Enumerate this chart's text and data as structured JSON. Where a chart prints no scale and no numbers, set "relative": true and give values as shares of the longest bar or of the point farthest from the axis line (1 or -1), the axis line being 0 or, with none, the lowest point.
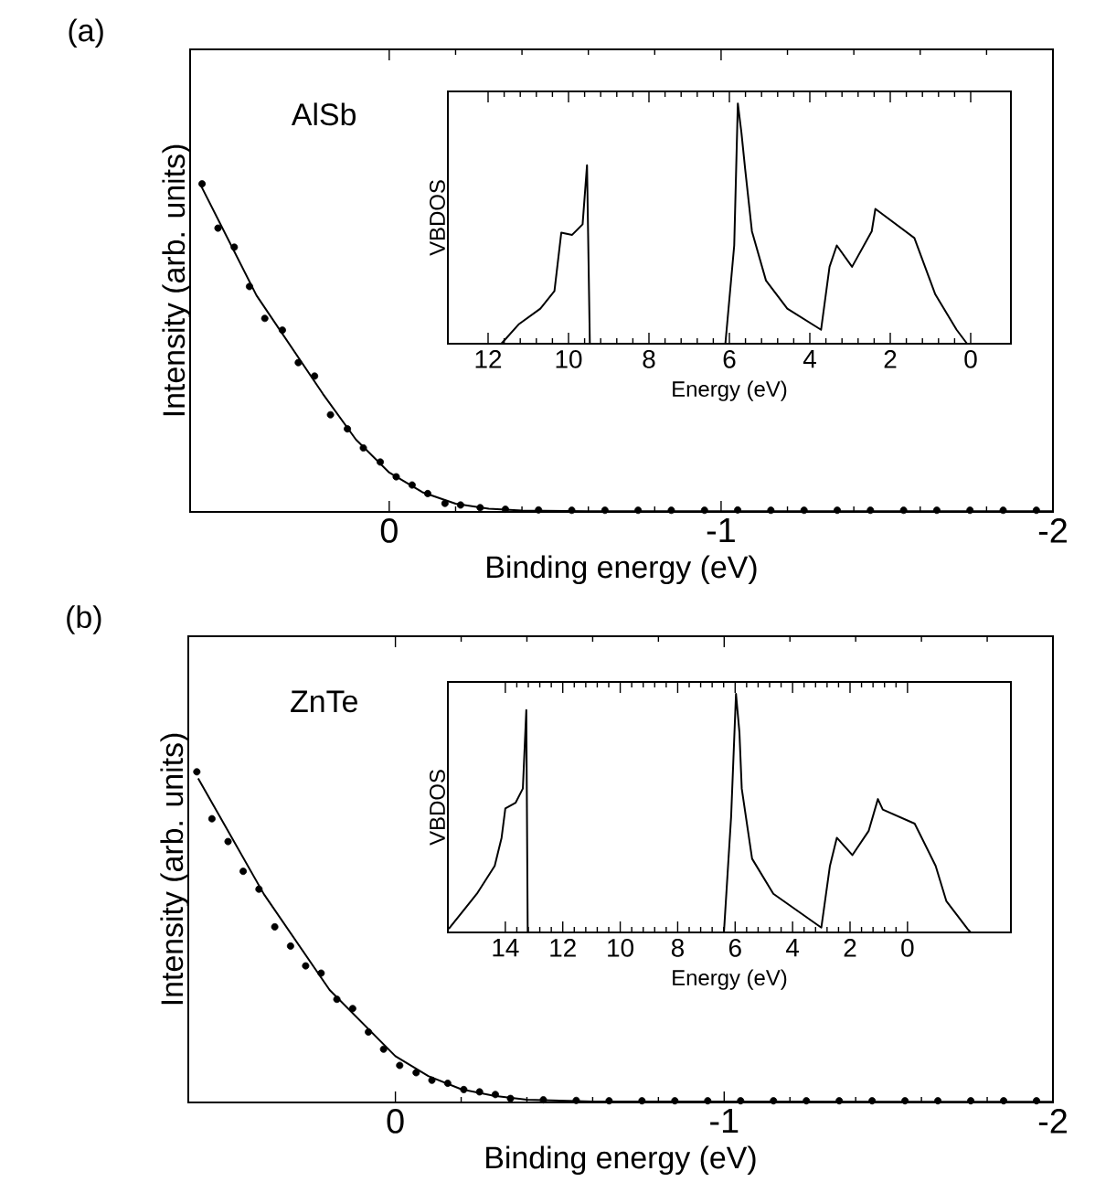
{
  "chart_data": [
    {
      "type": "line",
      "title": "(a)",
      "xlabel": "Binding energy (eV)",
      "ylabel": "Intensity (arb. units)",
      "annotations": [
        "AlSb"
      ],
      "relative": true,
      "xlim": [
        0.6,
        -2
      ],
      "xticks": [
        0,
        -1,
        -2
      ],
      "tick_labels": "x",
      "series": [
        {
          "type": "scatter",
          "marker": "circle",
          "color": "#000000",
          "x": [
            0.564,
            0.516,
            0.467,
            0.421,
            0.375,
            0.322,
            0.274,
            0.225,
            0.177,
            0.126,
            0.078,
            0.027,
            -0.021,
            -0.069,
            -0.116,
            -0.168,
            -0.215,
            -0.274,
            -0.35,
            -0.45,
            -0.55,
            -0.65,
            -0.75,
            -0.85,
            -0.95,
            -1.05,
            -1.15,
            -1.25,
            -1.35,
            -1.45,
            -1.55,
            -1.65,
            -1.75,
            -1.85,
            -1.95
          ],
          "values": [
            1.0,
            0.865,
            0.807,
            0.687,
            0.59,
            0.554,
            0.455,
            0.414,
            0.296,
            0.253,
            0.195,
            0.152,
            0.107,
            0.082,
            0.056,
            0.026,
            0.021,
            0.013,
            0.008,
            0.006,
            0.005,
            0.005,
            0.005,
            0.005,
            0.005,
            0.006,
            0.005,
            0.005,
            0.005,
            0.005,
            0.005,
            0.005,
            0.005,
            0.005,
            0.005
          ]
        },
        {
          "type": "line",
          "color": "#000000",
          "x": [
            0.57,
            0.4,
            0.2,
            0.1,
            0.0,
            -0.1,
            -0.2,
            -0.3,
            -0.4,
            -0.6,
            -2.0
          ],
          "values": [
            1.0,
            0.66,
            0.36,
            0.22,
            0.12,
            0.06,
            0.025,
            0.01,
            0.004,
            0.002,
            0.002
          ]
        }
      ]
    },
    {
      "type": "line",
      "xlabel": "Energy (eV)",
      "ylabel": "VBDOS",
      "relative": true,
      "xlim": [
        13,
        -1
      ],
      "xticks": [
        12,
        10,
        8,
        6,
        4,
        2,
        0
      ],
      "tick_labels": "x",
      "series": [
        {
          "color": "#000000",
          "x": [
            11.67,
            11.23,
            10.7,
            10.35,
            10.18,
            9.91,
            9.65,
            9.54,
            9.47,
            6.1,
            5.88,
            5.79,
            5.7,
            5.61,
            5.44,
            5.09,
            4.56,
            3.72,
            3.51,
            3.33,
            2.95,
            2.46,
            2.37,
            1.4,
            0.88,
            0.35,
            0.09
          ],
          "values": [
            0,
            0.082,
            0.146,
            0.219,
            0.462,
            0.453,
            0.497,
            0.743,
            0,
            0,
            0.409,
            1.0,
            0.877,
            0.73,
            0.468,
            0.263,
            0.146,
            0.058,
            0.32,
            0.409,
            0.32,
            0.468,
            0.561,
            0.44,
            0.205,
            0.058,
            0
          ]
        }
      ]
    },
    {
      "type": "line",
      "title": "(b)",
      "xlabel": "Binding energy (eV)",
      "ylabel": "Intensity (arb. units)",
      "annotations": [
        "ZnTe"
      ],
      "relative": true,
      "xlim": [
        0.63,
        -2
      ],
      "xticks": [
        0,
        -1,
        -2
      ],
      "tick_labels": "x",
      "series": [
        {
          "type": "scatter",
          "marker": "circle",
          "color": "#000000",
          "x": [
            0.604,
            0.558,
            0.509,
            0.463,
            0.415,
            0.367,
            0.319,
            0.273,
            0.226,
            0.178,
            0.13,
            0.082,
            0.036,
            -0.013,
            -0.063,
            -0.111,
            -0.159,
            -0.208,
            -0.256,
            -0.304,
            -0.35,
            -0.45,
            -0.55,
            -0.65,
            -0.75,
            -0.85,
            -0.95,
            -1.05,
            -1.15,
            -1.25,
            -1.35,
            -1.45,
            -1.55,
            -1.65,
            -1.75,
            -1.85,
            -1.95
          ],
          "values": [
            1.0,
            0.858,
            0.789,
            0.699,
            0.645,
            0.531,
            0.473,
            0.413,
            0.391,
            0.312,
            0.284,
            0.213,
            0.161,
            0.112,
            0.09,
            0.067,
            0.058,
            0.039,
            0.032,
            0.024,
            0.012,
            0.008,
            0.006,
            0.005,
            0.005,
            0.005,
            0.005,
            0.005,
            0.005,
            0.005,
            0.005,
            0.005,
            0.005,
            0.005,
            0.005,
            0.005,
            0.005
          ]
        },
        {
          "type": "line",
          "color": "#000000",
          "x": [
            0.6,
            0.4,
            0.2,
            0.0,
            -0.1,
            -0.2,
            -0.3,
            -0.4,
            -0.6,
            -2.0
          ],
          "values": [
            0.98,
            0.63,
            0.34,
            0.14,
            0.08,
            0.04,
            0.02,
            0.008,
            0.003,
            0.002
          ]
        }
      ]
    },
    {
      "type": "line",
      "xlabel": "Energy (eV)",
      "ylabel": "VBDOS",
      "relative": true,
      "xlim": [
        16,
        -3.6
      ],
      "xticks": [
        14,
        12,
        10,
        8,
        6,
        4,
        2,
        0
      ],
      "tick_labels": "x",
      "series": [
        {
          "color": "#000000",
          "x": [
            15.97,
            14.99,
            14.37,
            14.13,
            14.0,
            13.64,
            13.39,
            13.27,
            13.22,
            6.39,
            6.14,
            5.97,
            5.85,
            5.77,
            5.41,
            4.67,
            3.0,
            2.7,
            2.46,
            1.92,
            1.35,
            1.03,
            0.86,
            -0.25,
            -0.98,
            -1.35,
            -2.09,
            -2.2
          ],
          "values": [
            0.015,
            0.162,
            0.279,
            0.397,
            0.52,
            0.544,
            0.603,
            0.932,
            0,
            0,
            0.485,
            1.0,
            0.838,
            0.603,
            0.309,
            0.162,
            0.02,
            0.279,
            0.397,
            0.324,
            0.426,
            0.559,
            0.515,
            0.456,
            0.279,
            0.132,
            0.015,
            0
          ]
        }
      ]
    }
  ]
}
